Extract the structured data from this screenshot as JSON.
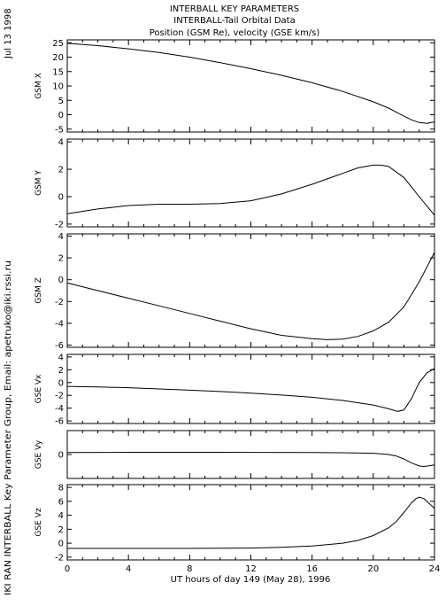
{
  "header": {
    "line1": "INTERBALL KEY PARAMETERS",
    "line2": "INTERBALL-Tail Orbital Data",
    "line3": "Position (GSM Re), velocity (GSE km/s)"
  },
  "side": {
    "date": "Jul 13 1998",
    "credit": "IKI RAN INTERBALL Key Parameter Group, Email: apetruko@iki.rssi.ru"
  },
  "chart_data": {
    "type": "line",
    "xlabel": "UT hours of day 149 (May 28), 1996",
    "xlim": [
      0,
      24
    ],
    "xticks": [
      0,
      4,
      8,
      12,
      16,
      20,
      24
    ],
    "panels": [
      {
        "ylabel": "GSM X",
        "ylim": [
          -6,
          26
        ],
        "yticks": [
          25,
          20,
          15,
          10,
          5,
          0,
          -5
        ],
        "series": [
          {
            "x": [
              0,
              2,
              4,
              6,
              8,
              10,
              12,
              14,
              16,
              18,
              20,
              21,
              22,
              22.5,
              23,
              23.5,
              24
            ],
            "y": [
              24.8,
              24.0,
              22.9,
              21.6,
              20.0,
              18.1,
              16.0,
              13.7,
              11.1,
              8.1,
              4.5,
              2.3,
              -0.5,
              -1.8,
              -2.7,
              -3.0,
              -2.5
            ]
          }
        ]
      },
      {
        "ylabel": "GSM Y",
        "ylim": [
          -2.2,
          4.2
        ],
        "yticks": [
          4,
          2,
          0,
          -2
        ],
        "series": [
          {
            "x": [
              0,
              2,
              4,
              6,
              8,
              10,
              12,
              14,
              16,
              18,
              19,
              20,
              20.5,
              21,
              22,
              23,
              24
            ],
            "y": [
              -1.25,
              -0.9,
              -0.65,
              -0.55,
              -0.55,
              -0.5,
              -0.3,
              0.2,
              0.9,
              1.7,
              2.1,
              2.3,
              2.3,
              2.2,
              1.4,
              0.0,
              -1.35
            ]
          }
        ]
      },
      {
        "ylabel": "GSM Z",
        "ylim": [
          -6.2,
          4.2
        ],
        "yticks": [
          4,
          2,
          0,
          -2,
          -4,
          -6
        ],
        "series": [
          {
            "x": [
              0,
              2,
              4,
              6,
              8,
              10,
              12,
              14,
              16,
              17,
              18,
              19,
              20,
              21,
              22,
              23,
              24
            ],
            "y": [
              -0.3,
              -1.0,
              -1.7,
              -2.4,
              -3.1,
              -3.8,
              -4.5,
              -5.1,
              -5.4,
              -5.5,
              -5.45,
              -5.2,
              -4.7,
              -3.9,
              -2.5,
              -0.2,
              2.5
            ]
          }
        ]
      },
      {
        "ylabel": "GSE Vx",
        "ylim": [
          -6.4,
          4.4
        ],
        "yticks": [
          4,
          2,
          0,
          -2,
          -4,
          -6
        ],
        "series": [
          {
            "x": [
              0,
              2,
              4,
              6,
              8,
              10,
              12,
              14,
              16,
              18,
              20,
              21,
              21.6,
              22,
              22.5,
              23,
              23.5,
              24
            ],
            "y": [
              -0.6,
              -0.7,
              -0.8,
              -1.0,
              -1.2,
              -1.4,
              -1.65,
              -1.95,
              -2.3,
              -2.8,
              -3.5,
              -4.1,
              -4.5,
              -4.3,
              -2.5,
              0.0,
              1.5,
              2.2
            ]
          }
        ]
      },
      {
        "ylabel": "GSE Vy",
        "ylim": [
          -2.4,
          2.4
        ],
        "yticks": [
          0
        ],
        "series": [
          {
            "x": [
              0,
              4,
              8,
              12,
              16,
              18,
              20,
              21,
              21.5,
              22,
              22.5,
              23,
              23.3,
              23.6,
              24
            ],
            "y": [
              0.2,
              0.22,
              0.22,
              0.21,
              0.2,
              0.18,
              0.12,
              0.0,
              -0.15,
              -0.45,
              -0.85,
              -1.15,
              -1.2,
              -1.15,
              -1.05
            ]
          }
        ]
      },
      {
        "ylabel": "GSE Vz",
        "ylim": [
          -2.4,
          8.4
        ],
        "yticks": [
          8,
          6,
          4,
          2,
          0,
          -2
        ],
        "series": [
          {
            "x": [
              0,
              4,
              8,
              12,
              14,
              16,
              18,
              19,
              20,
              21,
              21.5,
              22,
              22.5,
              22.8,
              23,
              23.3,
              23.6,
              24
            ],
            "y": [
              -0.75,
              -0.75,
              -0.75,
              -0.7,
              -0.6,
              -0.4,
              0.0,
              0.4,
              1.1,
              2.2,
              3.1,
              4.4,
              5.8,
              6.4,
              6.6,
              6.4,
              5.8,
              5.0
            ]
          }
        ]
      }
    ]
  }
}
